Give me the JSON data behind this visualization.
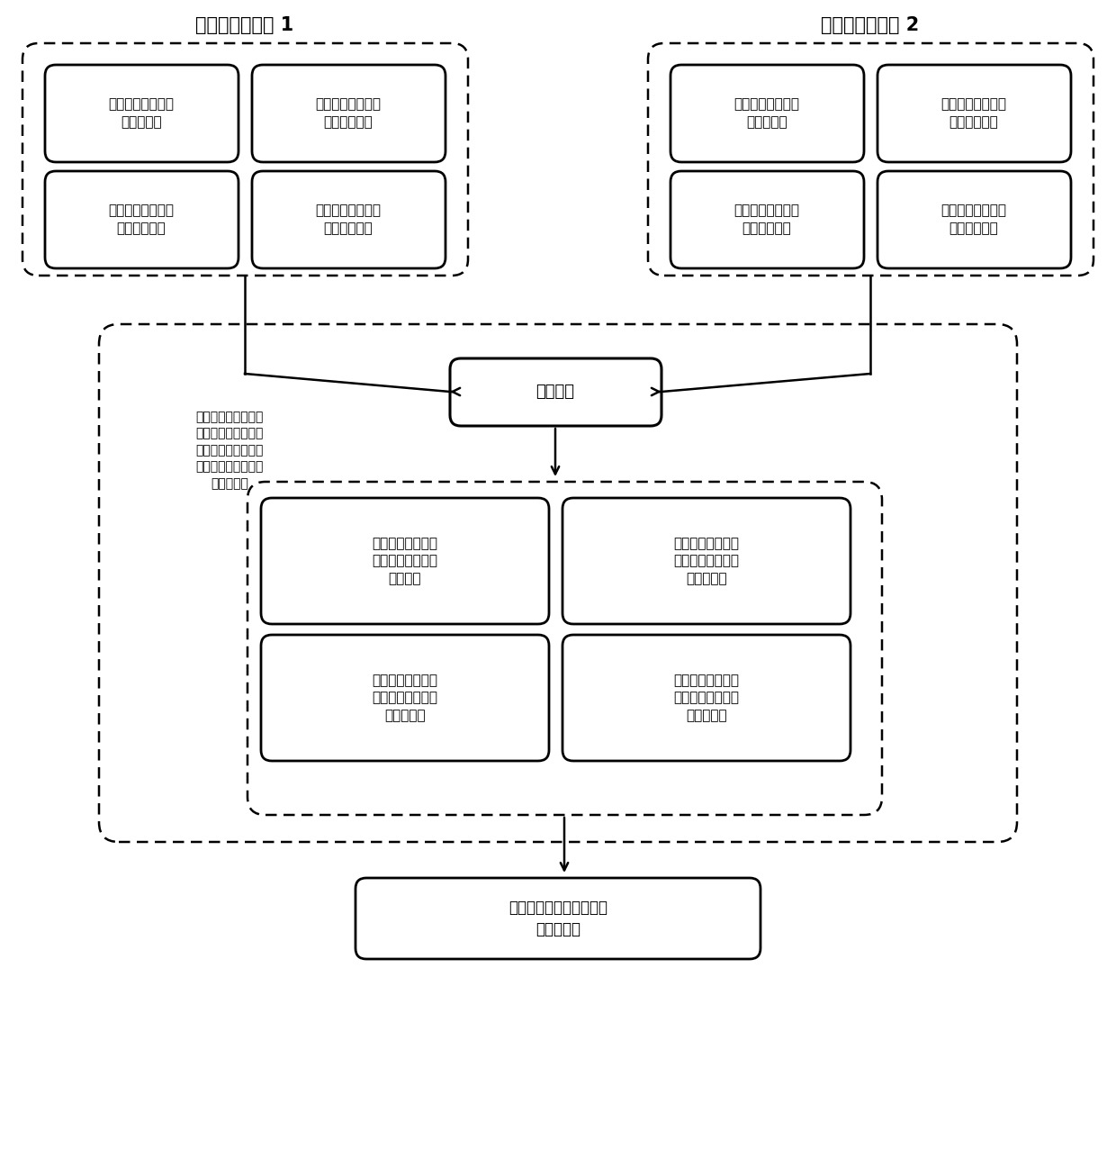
{
  "title1": "雷达数据处理器 1",
  "title2": "雷达数据处理器 2",
  "box1_tl": "获取被跟踪目标的\n经纬度信息",
  "box1_tr": "获取被跟踪目标的\n即时速度信息",
  "box1_bl": "获取被跟踪目标的\n所在车道信息",
  "box1_br": "获取被跟踪目标的\n运动方向信息",
  "box2_tl": "获取被跟踪目标的\n经纬度信息",
  "box2_tr": "获取被跟踪目标的\n即时速度信息",
  "box2_bl": "获取被跟踪目标的\n所在车道信息",
  "box2_br": "获取被跟踪目标的\n运动方向信息",
  "data_exchange_label": "数据交互",
  "left_text": "数据交互与融合的发\n起和判断以被跟踪目\n标初进入雷达检测区\n域所对应的数据分析\n处理器为主",
  "judge_tl": "判断被跟踪的两个\n目标的经纬度信息\n是否一致",
  "judge_tr": "判断被跟踪的两个\n目标的即时速度信\n息是否一致",
  "judge_bl": "判断被跟踪的两个\n目标的所在车道信\n息是否一致",
  "judge_br": "判断被跟踪的两个\n目标的运动方向信\n息是否一致",
  "bottom_box": "调用目标持续跟踪定位模\n型以及算法",
  "bg_color": "#ffffff",
  "text_color": "#000000",
  "font_size_title": 15,
  "font_size_box": 11,
  "font_size_small": 10,
  "font_size_de": 13,
  "font_size_bottom": 12
}
